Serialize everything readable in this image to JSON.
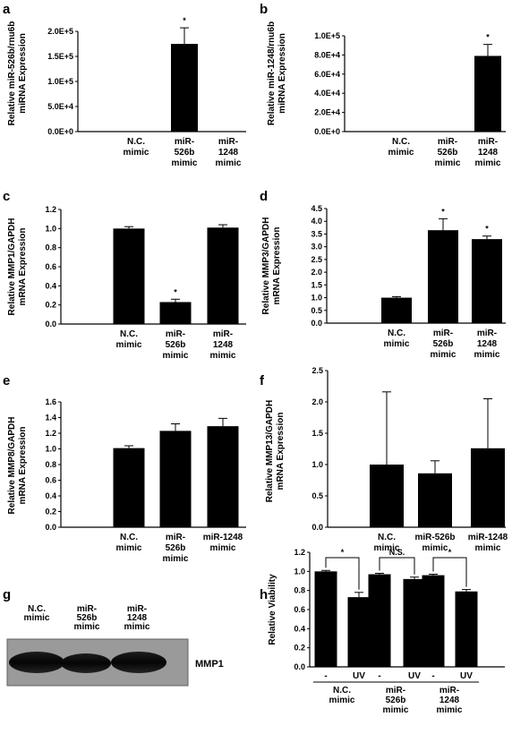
{
  "chart_data": [
    {
      "panel": "a",
      "type": "bar",
      "categories": [
        [
          "N.C.",
          "mimic"
        ],
        [
          "miR-",
          "526b",
          "mimic"
        ],
        [
          "miR-",
          "1248",
          "mimic"
        ]
      ],
      "values": [
        0,
        175000,
        0
      ],
      "errors": [
        0,
        32000,
        0
      ],
      "significance": [
        "",
        "*",
        ""
      ],
      "ylabel": [
        "Relative miR-526b/rnu6b",
        "miRNA Expression"
      ],
      "ylim": [
        0,
        200000
      ],
      "yticks": [
        "0.0E+0",
        "5.0E+4",
        "1.0E+5",
        "1.5E+5",
        "2.0E+5"
      ]
    },
    {
      "panel": "b",
      "type": "bar",
      "categories": [
        [
          "N.C.",
          "mimic"
        ],
        [
          "miR-",
          "526b",
          "mimic"
        ],
        [
          "miR-",
          "1248",
          "mimic"
        ]
      ],
      "values": [
        0,
        0,
        79000
      ],
      "errors": [
        0,
        0,
        12000
      ],
      "significance": [
        "",
        "",
        "*"
      ],
      "ylabel": [
        "Relative miR-1248/rnu6b",
        "miRNA Expression"
      ],
      "ylim": [
        0,
        100000
      ],
      "yticks": [
        "0.0E+0",
        "2.0E+4",
        "4.0E+4",
        "6.0E+4",
        "8.0E+4",
        "1.0E+5"
      ]
    },
    {
      "panel": "c",
      "type": "bar",
      "categories": [
        [
          "N.C.",
          "mimic"
        ],
        [
          "miR-",
          "526b",
          "mimic"
        ],
        [
          "miR-",
          "1248",
          "mimic"
        ]
      ],
      "values": [
        1.0,
        0.23,
        1.01
      ],
      "errors": [
        0.02,
        0.03,
        0.03
      ],
      "significance": [
        "",
        "*",
        ""
      ],
      "ylabel": [
        "Relative MMP1/GAPDH",
        "mRNA Expression"
      ],
      "ylim": [
        0,
        1.2
      ],
      "yticks": [
        "0.0",
        "0.2",
        "0.4",
        "0.6",
        "0.8",
        "1.0",
        "1.2"
      ]
    },
    {
      "panel": "d",
      "type": "bar",
      "categories": [
        [
          "N.C.",
          "mimic"
        ],
        [
          "miR-",
          "526b",
          "mimic"
        ],
        [
          "miR-",
          "1248",
          "mimic"
        ]
      ],
      "values": [
        1.0,
        3.65,
        3.3
      ],
      "errors": [
        0.04,
        0.45,
        0.12
      ],
      "significance": [
        "",
        "*",
        "*"
      ],
      "ylabel": [
        "Relative MMP3/GAPDH",
        "mRNA Expression"
      ],
      "ylim": [
        0,
        4.5
      ],
      "yticks": [
        "0.0",
        "0.5",
        "1.0",
        "1.5",
        "2.0",
        "2.5",
        "3.0",
        "3.5",
        "4.0",
        "4.5"
      ]
    },
    {
      "panel": "e",
      "type": "bar",
      "categories": [
        [
          "N.C.",
          "mimic"
        ],
        [
          "miR-",
          "526b",
          "mimic"
        ],
        [
          "miR-1248",
          "mimic"
        ]
      ],
      "values": [
        1.01,
        1.23,
        1.29
      ],
      "errors": [
        0.03,
        0.09,
        0.1
      ],
      "significance": [
        "",
        "",
        ""
      ],
      "ylabel": [
        "Relative MMP8/GAPDH",
        "mRNA Expression"
      ],
      "ylim": [
        0,
        1.6
      ],
      "yticks": [
        "0.0",
        "0.2",
        "0.4",
        "0.6",
        "0.8",
        "1.0",
        "1.2",
        "1.4",
        "1.6"
      ]
    },
    {
      "panel": "f",
      "type": "bar",
      "categories": [
        [
          "N.C.",
          "mimic"
        ],
        [
          "miR-526b",
          "mimic"
        ],
        [
          "miR-1248",
          "mimic"
        ]
      ],
      "values": [
        1.0,
        0.86,
        1.26
      ],
      "errors": [
        1.16,
        0.2,
        0.79
      ],
      "significance": [
        "",
        "",
        ""
      ],
      "ylabel": [
        "Relative MMP13/GAPDH",
        "mRNA Expression"
      ],
      "ylim": [
        0,
        2.5
      ],
      "yticks": [
        "0.0",
        "0.5",
        "1.0",
        "1.5",
        "2.0",
        "2.5"
      ]
    },
    {
      "panel": "h",
      "type": "bar",
      "categories": [
        "-",
        "UV",
        "-",
        "UV",
        "-",
        "UV"
      ],
      "groups": [
        [
          "N.C.",
          "mimic"
        ],
        [
          "miR-",
          "526b",
          "mimic"
        ],
        [
          "miR-",
          "1248",
          "mimic"
        ]
      ],
      "values": [
        1.0,
        0.73,
        0.97,
        0.92,
        0.96,
        0.79
      ],
      "errors": [
        0.01,
        0.05,
        0.01,
        0.02,
        0.01,
        0.02
      ],
      "brackets": [
        "*",
        "N.S.",
        "*"
      ],
      "ylabel": [
        "Relative Viability"
      ],
      "ylim": [
        0,
        1.2
      ],
      "yticks": [
        "0.0",
        "0.2",
        "0.4",
        "0.6",
        "0.8",
        "1.0",
        "1.2"
      ]
    }
  ],
  "blot": {
    "panel": "g",
    "lanes": [
      [
        "N.C.",
        "mimic"
      ],
      [
        "miR-",
        "526b",
        "mimic"
      ],
      [
        "miR-",
        "1248",
        "mimic"
      ]
    ],
    "band_label": "MMP1"
  },
  "panel_letters": [
    "a",
    "b",
    "c",
    "d",
    "e",
    "f",
    "g",
    "h"
  ]
}
